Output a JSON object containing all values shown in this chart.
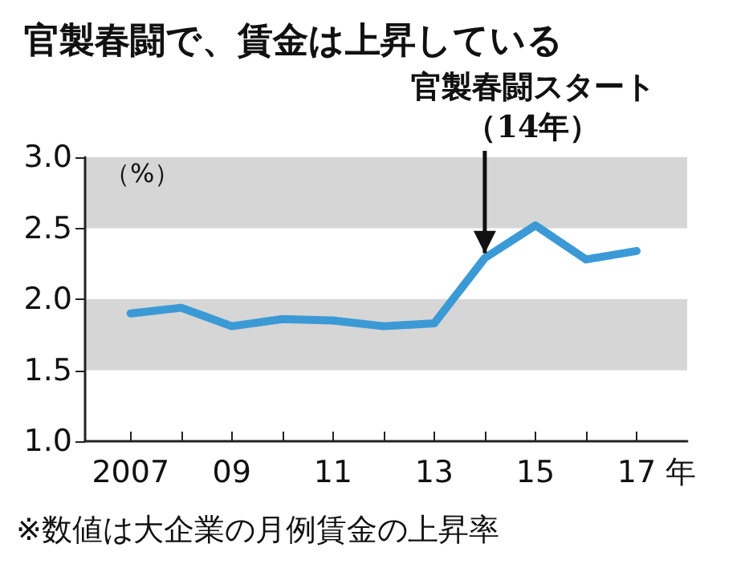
{
  "chart_data": {
    "type": "line",
    "title": "官製春闘で、賃金は上昇している",
    "ylabel": "（%）",
    "x": [
      2007,
      2008,
      2009,
      2010,
      2011,
      2012,
      2013,
      2014,
      2015,
      2016,
      2017
    ],
    "series": [
      {
        "color": "#3b9ad6",
        "values": [
          1.9,
          1.94,
          1.81,
          1.86,
          1.85,
          1.81,
          1.83,
          2.29,
          2.52,
          2.28,
          2.34
        ]
      }
    ],
    "xlim": [
      2006.1,
      2018
    ],
    "xticks": [
      {
        "value": 2007,
        "label": "2007"
      },
      {
        "value": 2008,
        "label": null
      },
      {
        "value": 2009,
        "label": "09"
      },
      {
        "value": 2010,
        "label": null
      },
      {
        "value": 2011,
        "label": "11"
      },
      {
        "value": 2012,
        "label": null
      },
      {
        "value": 2013,
        "label": "13"
      },
      {
        "value": 2014,
        "label": null
      },
      {
        "value": 2015,
        "label": "15"
      },
      {
        "value": 2016,
        "label": null
      },
      {
        "value": 2017,
        "label": "17"
      }
    ],
    "xlabel": "年",
    "ylim": [
      1,
      3
    ],
    "yticks": [
      {
        "value": 1,
        "label": "1.0"
      },
      {
        "value": 1.5,
        "label": "1.5"
      },
      {
        "value": 2,
        "label": "2.0"
      },
      {
        "value": 2.5,
        "label": "2.5"
      },
      {
        "value": 3,
        "label": "3.0"
      }
    ],
    "bands": [
      {
        "axis": "y",
        "from": 1.5,
        "to": 2.0,
        "color": "#d6d6d6"
      },
      {
        "axis": "y",
        "from": 2.5,
        "to": 3.0,
        "color": "#d6d6d6"
      }
    ],
    "annotations": [
      {
        "text": "官製春闘スタート（14年）",
        "x": 2014,
        "y": 2.29
      },
      "※数値は大企業の月例賃金の上昇率"
    ],
    "grid": false,
    "marker": "none",
    "line_style": "solid"
  }
}
